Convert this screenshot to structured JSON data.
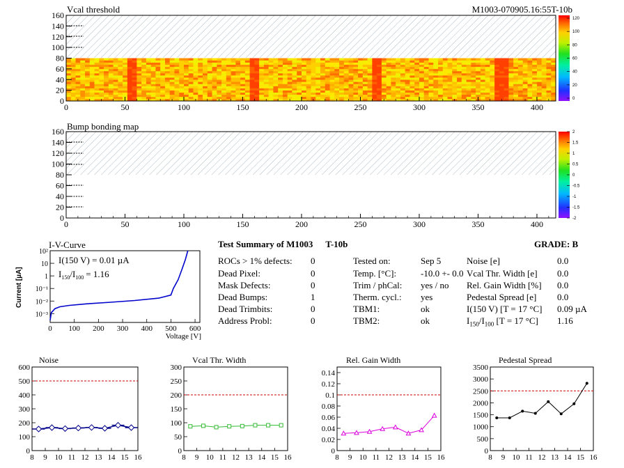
{
  "header": {
    "title": "Vcal threshold",
    "module_id": "M1003-070905.16:55T-10b"
  },
  "chart_data": [
    {
      "type": "heatmap",
      "title": "Vcal threshold",
      "x_ticks": [
        0,
        50,
        100,
        150,
        200,
        250,
        300,
        350,
        400
      ],
      "y_ticks": [
        0,
        20,
        40,
        60,
        80,
        100,
        120,
        140,
        160
      ],
      "xlim": [
        0,
        416
      ],
      "ylim": [
        0,
        160
      ],
      "filled_rows": [
        0,
        80
      ],
      "colorbar_ticks": [
        "0",
        "20",
        "40",
        "60",
        "80",
        "100",
        "120"
      ],
      "colorbar_range": [
        0,
        130
      ]
    },
    {
      "type": "heatmap",
      "title": "Bump bonding map",
      "x_ticks": [
        0,
        50,
        100,
        150,
        200,
        250,
        300,
        350,
        400
      ],
      "y_ticks": [
        0,
        20,
        40,
        60,
        80,
        100,
        120,
        140,
        160
      ],
      "xlim": [
        0,
        416
      ],
      "ylim": [
        0,
        160
      ],
      "colorbar_ticks": [
        "2",
        "1.5",
        "1",
        "0.5",
        "0",
        "-0.5",
        "-1",
        "-1.5",
        "-2"
      ],
      "colorbar_range": [
        -2,
        2
      ]
    },
    {
      "type": "line",
      "title": "I-V-Curve",
      "xlabel": "Voltage [V]",
      "ylabel": "Current [µA]",
      "x_ticks": [
        0,
        100,
        200,
        300,
        400,
        500,
        600
      ],
      "y_ticks": [
        "10⁻³",
        "10⁻²",
        "10⁻¹",
        "1",
        "10",
        "10²"
      ],
      "xlim": [
        0,
        620
      ],
      "ylim_log": [
        -3.7,
        2
      ],
      "annotation_1": "I(150 V) = 0.01 µA",
      "annotation_2": "I",
      "annotation_2_sub1": "150",
      "annotation_2_mid": "/I",
      "annotation_2_sub2": "100",
      "annotation_2_end": "=  1.16",
      "x": [
        0,
        5,
        20,
        40,
        80,
        150,
        250,
        350,
        450,
        500,
        510,
        530,
        545,
        560,
        570
      ],
      "y": [
        0.0003,
        0.0012,
        0.0025,
        0.0035,
        0.0045,
        0.006,
        0.008,
        0.011,
        0.017,
        0.03,
        0.1,
        0.5,
        3,
        20,
        100
      ]
    },
    {
      "type": "scatter",
      "title": "Noise",
      "x_ticks": [
        8,
        9,
        10,
        11,
        12,
        13,
        14,
        15,
        16
      ],
      "y_ticks": [
        0,
        100,
        200,
        300,
        400,
        500,
        600
      ],
      "xlim": [
        8,
        16
      ],
      "ylim": [
        0,
        600
      ],
      "reference_line": 500,
      "x": [
        8.5,
        9.5,
        10.5,
        11.5,
        12.5,
        13.5,
        14.5,
        15.5
      ],
      "values": [
        155,
        165,
        158,
        162,
        166,
        160,
        182,
        165
      ]
    },
    {
      "type": "line",
      "title": "Vcal Thr. Width",
      "x_ticks": [
        8,
        9,
        10,
        11,
        12,
        13,
        14,
        15,
        16
      ],
      "y_ticks": [
        0,
        50,
        100,
        150,
        200,
        250,
        300
      ],
      "xlim": [
        8,
        16
      ],
      "ylim": [
        0,
        300
      ],
      "reference_line": 200,
      "x": [
        8.5,
        9.5,
        10.5,
        11.5,
        12.5,
        13.5,
        14.5,
        15.5
      ],
      "values": [
        87,
        89,
        84,
        87,
        88,
        91,
        91,
        91
      ]
    },
    {
      "type": "line",
      "title": "Rel. Gain Width",
      "x_ticks": [
        8,
        9,
        10,
        11,
        12,
        13,
        14,
        15,
        16
      ],
      "y_ticks": [
        "0",
        "0.02",
        "0.04",
        "0.06",
        "0.08",
        "0.1",
        "0.12",
        "0.14"
      ],
      "xlim": [
        8,
        16
      ],
      "ylim": [
        0,
        0.15
      ],
      "reference_line": 0.1,
      "x": [
        8.5,
        9.5,
        10.5,
        11.5,
        12.5,
        13.5,
        14.5,
        15.5
      ],
      "values": [
        0.031,
        0.032,
        0.034,
        0.039,
        0.042,
        0.031,
        0.037,
        0.063
      ]
    },
    {
      "type": "line",
      "title": "Pedestal Spread",
      "x_ticks": [
        8,
        9,
        10,
        11,
        12,
        13,
        14,
        15,
        16
      ],
      "y_ticks": [
        0,
        500,
        1000,
        1500,
        2000,
        2500,
        3000,
        3500
      ],
      "xlim": [
        8,
        16
      ],
      "ylim": [
        0,
        3500
      ],
      "reference_line": 2500,
      "x": [
        8.5,
        9.5,
        10.5,
        11.5,
        12.5,
        13.5,
        14.5,
        15.5
      ],
      "values": [
        1370,
        1370,
        1650,
        1560,
        2050,
        1540,
        1960,
        2820
      ]
    }
  ],
  "summary": {
    "title": "Test Summary of M1003",
    "tag": "T-10b",
    "grade": "GRADE:  B",
    "col1": [
      {
        "label": "ROCs > 1% defects:",
        "value": "0"
      },
      {
        "label": "Dead Pixel:",
        "value": "0"
      },
      {
        "label": "Mask Defects:",
        "value": "0"
      },
      {
        "label": "Dead Bumps:",
        "value": "1"
      },
      {
        "label": "Dead Trimbits:",
        "value": "0"
      },
      {
        "label": "Address Probl:",
        "value": "0"
      }
    ],
    "col2": [
      {
        "label": "Tested on:",
        "value": "Sep 5"
      },
      {
        "label": "Temp. [°C]:",
        "value": "-10.0 +- 0.0"
      },
      {
        "label": "Trim / phCal:",
        "value": "yes / no"
      },
      {
        "label": "Therm. cycl.:",
        "value": "yes"
      },
      {
        "label": "TBM1:",
        "value": "ok"
      },
      {
        "label": "TBM2:",
        "value": "ok"
      }
    ],
    "col3": [
      {
        "label": "Noise [e]",
        "value": "0.0"
      },
      {
        "label": "Vcal Thr. Width [e]",
        "value": "0.0"
      },
      {
        "label": "Rel. Gain Width [%]",
        "value": "0.0"
      },
      {
        "label": "Pedestal Spread [e]",
        "value": "0.0"
      },
      {
        "label": "I(150 V) [T = 17 °C]",
        "value": "0.09 µA"
      },
      {
        "label": "I",
        "value": "1.16"
      }
    ],
    "ratio_label": {
      "sub1": "150",
      "mid": "/I",
      "sub2": "100",
      "end": "  [T = 17 °C]"
    }
  },
  "colors": {
    "hatch": "#9aaab4",
    "iv_line": "#0000cc",
    "noise": "#00008b",
    "vcal": "#33bb33",
    "gain": "#dd00dd",
    "pedestal": "#000000",
    "reference": "#cc0000"
  }
}
